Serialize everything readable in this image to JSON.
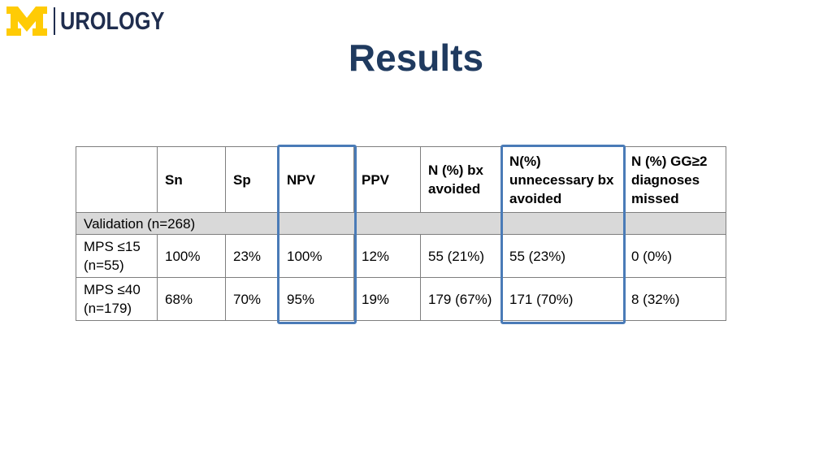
{
  "logo": {
    "mark": "M",
    "text": "UROLOGY"
  },
  "title": "Results",
  "table": {
    "headers": [
      "",
      "Sn",
      "Sp",
      "NPV",
      "PPV",
      "N (%) bx avoided",
      "N(%) unnecessary bx avoided",
      "N (%) GG≥2 diagnoses missed"
    ],
    "section_label": "Validation (n=268)",
    "rows": [
      {
        "label": "MPS ≤15 (n=55)",
        "sn": "100%",
        "sp": "23%",
        "npv": "100%",
        "ppv": "12%",
        "bx_avoided": "55 (21%)",
        "unnecessary_bx_avoided": "55 (23%)",
        "gg2_missed": "0 (0%)"
      },
      {
        "label": "MPS ≤40 (n=179)",
        "sn": "68%",
        "sp": "70%",
        "npv": "95%",
        "ppv": "19%",
        "bx_avoided": "179 (67%)",
        "unnecessary_bx_avoided": "171 (70%)",
        "gg2_missed": "8 (32%)"
      }
    ]
  },
  "colors": {
    "brand_yellow": "#ffcb05",
    "brand_navy": "#1f2d4e",
    "title": "#1f3a5f",
    "highlight_box": "#4a7bb7",
    "section_fill": "#d9d9d9"
  }
}
